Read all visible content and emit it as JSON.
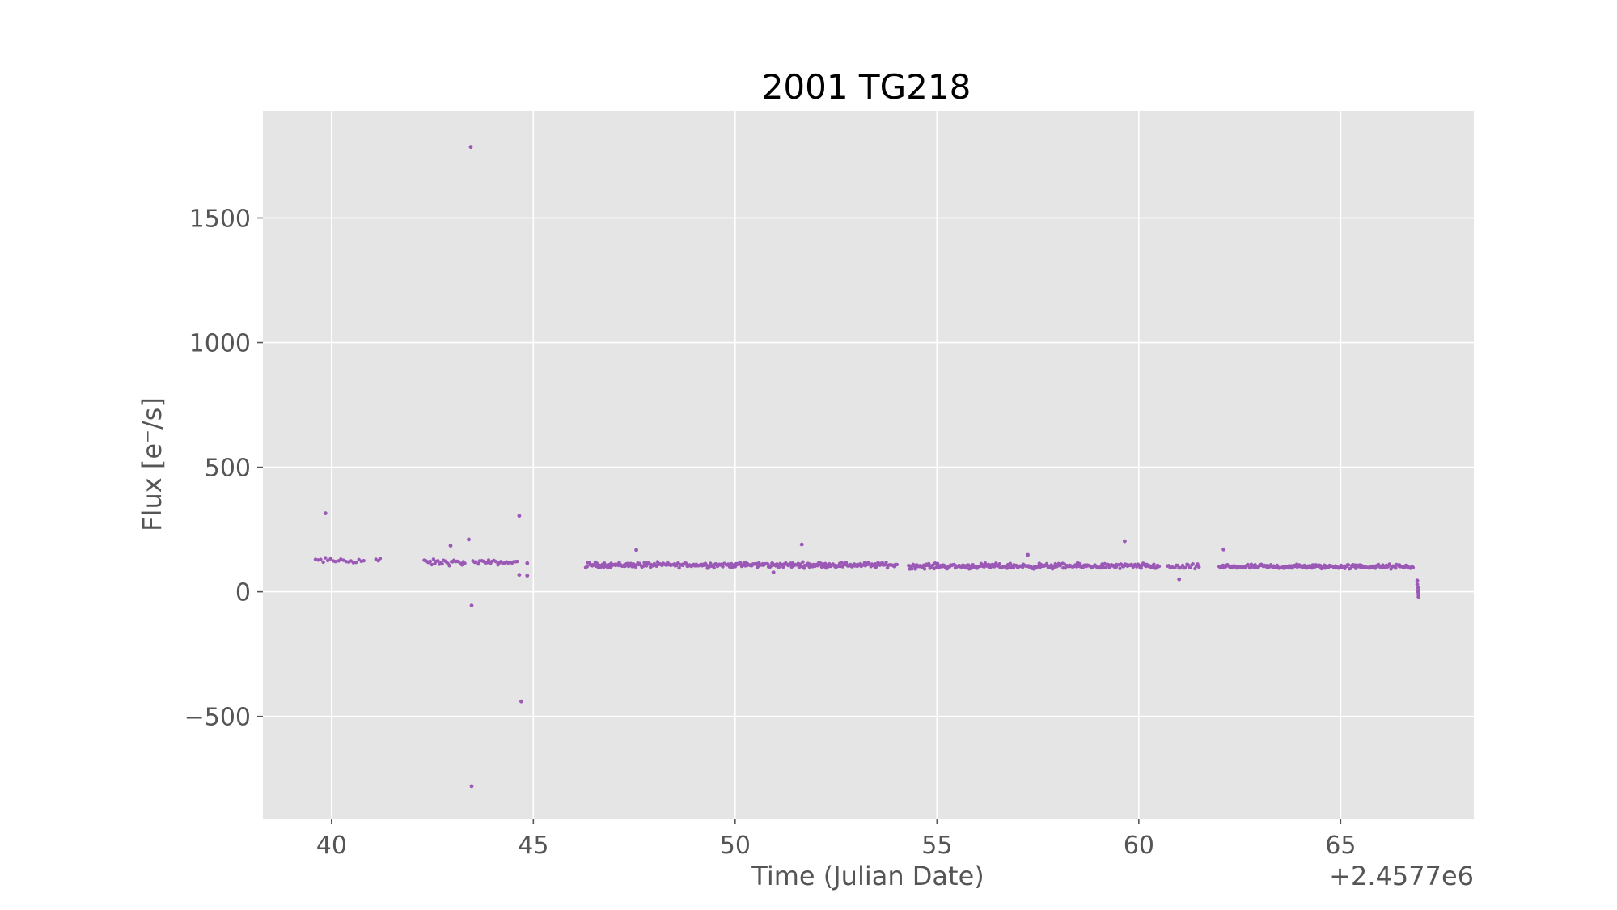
{
  "chart_data": {
    "type": "scatter",
    "title": "2001 TG218",
    "xlabel": "Time (Julian Date)",
    "ylabel": "Flux [e⁻/s]",
    "offset_text": "+2.4577e6",
    "xlim": [
      38.3,
      68.3
    ],
    "ylim": [
      -910,
      1930
    ],
    "xticks": [
      40,
      45,
      50,
      55,
      60,
      65
    ],
    "xtick_labels": [
      "40",
      "45",
      "50",
      "55",
      "60",
      "65"
    ],
    "yticks": [
      -500,
      0,
      500,
      1000,
      1500
    ],
    "ytick_labels": [
      "−500",
      "0",
      "500",
      "1000",
      "1500"
    ],
    "grid": true,
    "background": "#e5e5e5",
    "grid_color": "#ffffff",
    "point_color": "#9b59b6",
    "series": [
      {
        "segments": [
          {
            "x_start": 39.6,
            "x_end": 40.8,
            "base": 125,
            "noise": 10,
            "n": 20
          },
          {
            "x_start": 41.1,
            "x_end": 41.2,
            "base": 128,
            "noise": 12,
            "n": 3
          },
          {
            "x_start": 42.3,
            "x_end": 43.3,
            "base": 118,
            "noise": 10,
            "n": 28
          },
          {
            "x_start": 43.5,
            "x_end": 44.6,
            "base": 118,
            "noise": 8,
            "n": 26
          },
          {
            "x_start": 46.3,
            "x_end": 54.0,
            "base": 108,
            "noise": 9,
            "n": 300
          },
          {
            "x_start": 54.3,
            "x_end": 60.5,
            "base": 103,
            "noise": 9,
            "n": 250
          },
          {
            "x_start": 60.7,
            "x_end": 61.5,
            "base": 100,
            "noise": 9,
            "n": 22
          },
          {
            "x_start": 62.0,
            "x_end": 66.8,
            "base": 101,
            "noise": 8,
            "n": 190
          }
        ],
        "points": [
          {
            "x": 39.85,
            "y": 315
          },
          {
            "x": 43.45,
            "y": 1785
          },
          {
            "x": 43.4,
            "y": 210
          },
          {
            "x": 43.47,
            "y": -55
          },
          {
            "x": 43.47,
            "y": -780
          },
          {
            "x": 42.95,
            "y": 185
          },
          {
            "x": 44.65,
            "y": 305
          },
          {
            "x": 44.7,
            "y": -440
          },
          {
            "x": 44.65,
            "y": 68
          },
          {
            "x": 44.85,
            "y": 65
          },
          {
            "x": 44.85,
            "y": 115
          },
          {
            "x": 47.55,
            "y": 168
          },
          {
            "x": 51.65,
            "y": 190
          },
          {
            "x": 50.95,
            "y": 78
          },
          {
            "x": 57.25,
            "y": 148
          },
          {
            "x": 59.65,
            "y": 203
          },
          {
            "x": 61.0,
            "y": 50
          },
          {
            "x": 62.1,
            "y": 170
          },
          {
            "x": 66.9,
            "y": 45
          },
          {
            "x": 66.9,
            "y": 30
          },
          {
            "x": 66.92,
            "y": 15
          },
          {
            "x": 66.92,
            "y": 0
          },
          {
            "x": 66.93,
            "y": -10
          },
          {
            "x": 66.93,
            "y": -20
          }
        ]
      }
    ]
  }
}
